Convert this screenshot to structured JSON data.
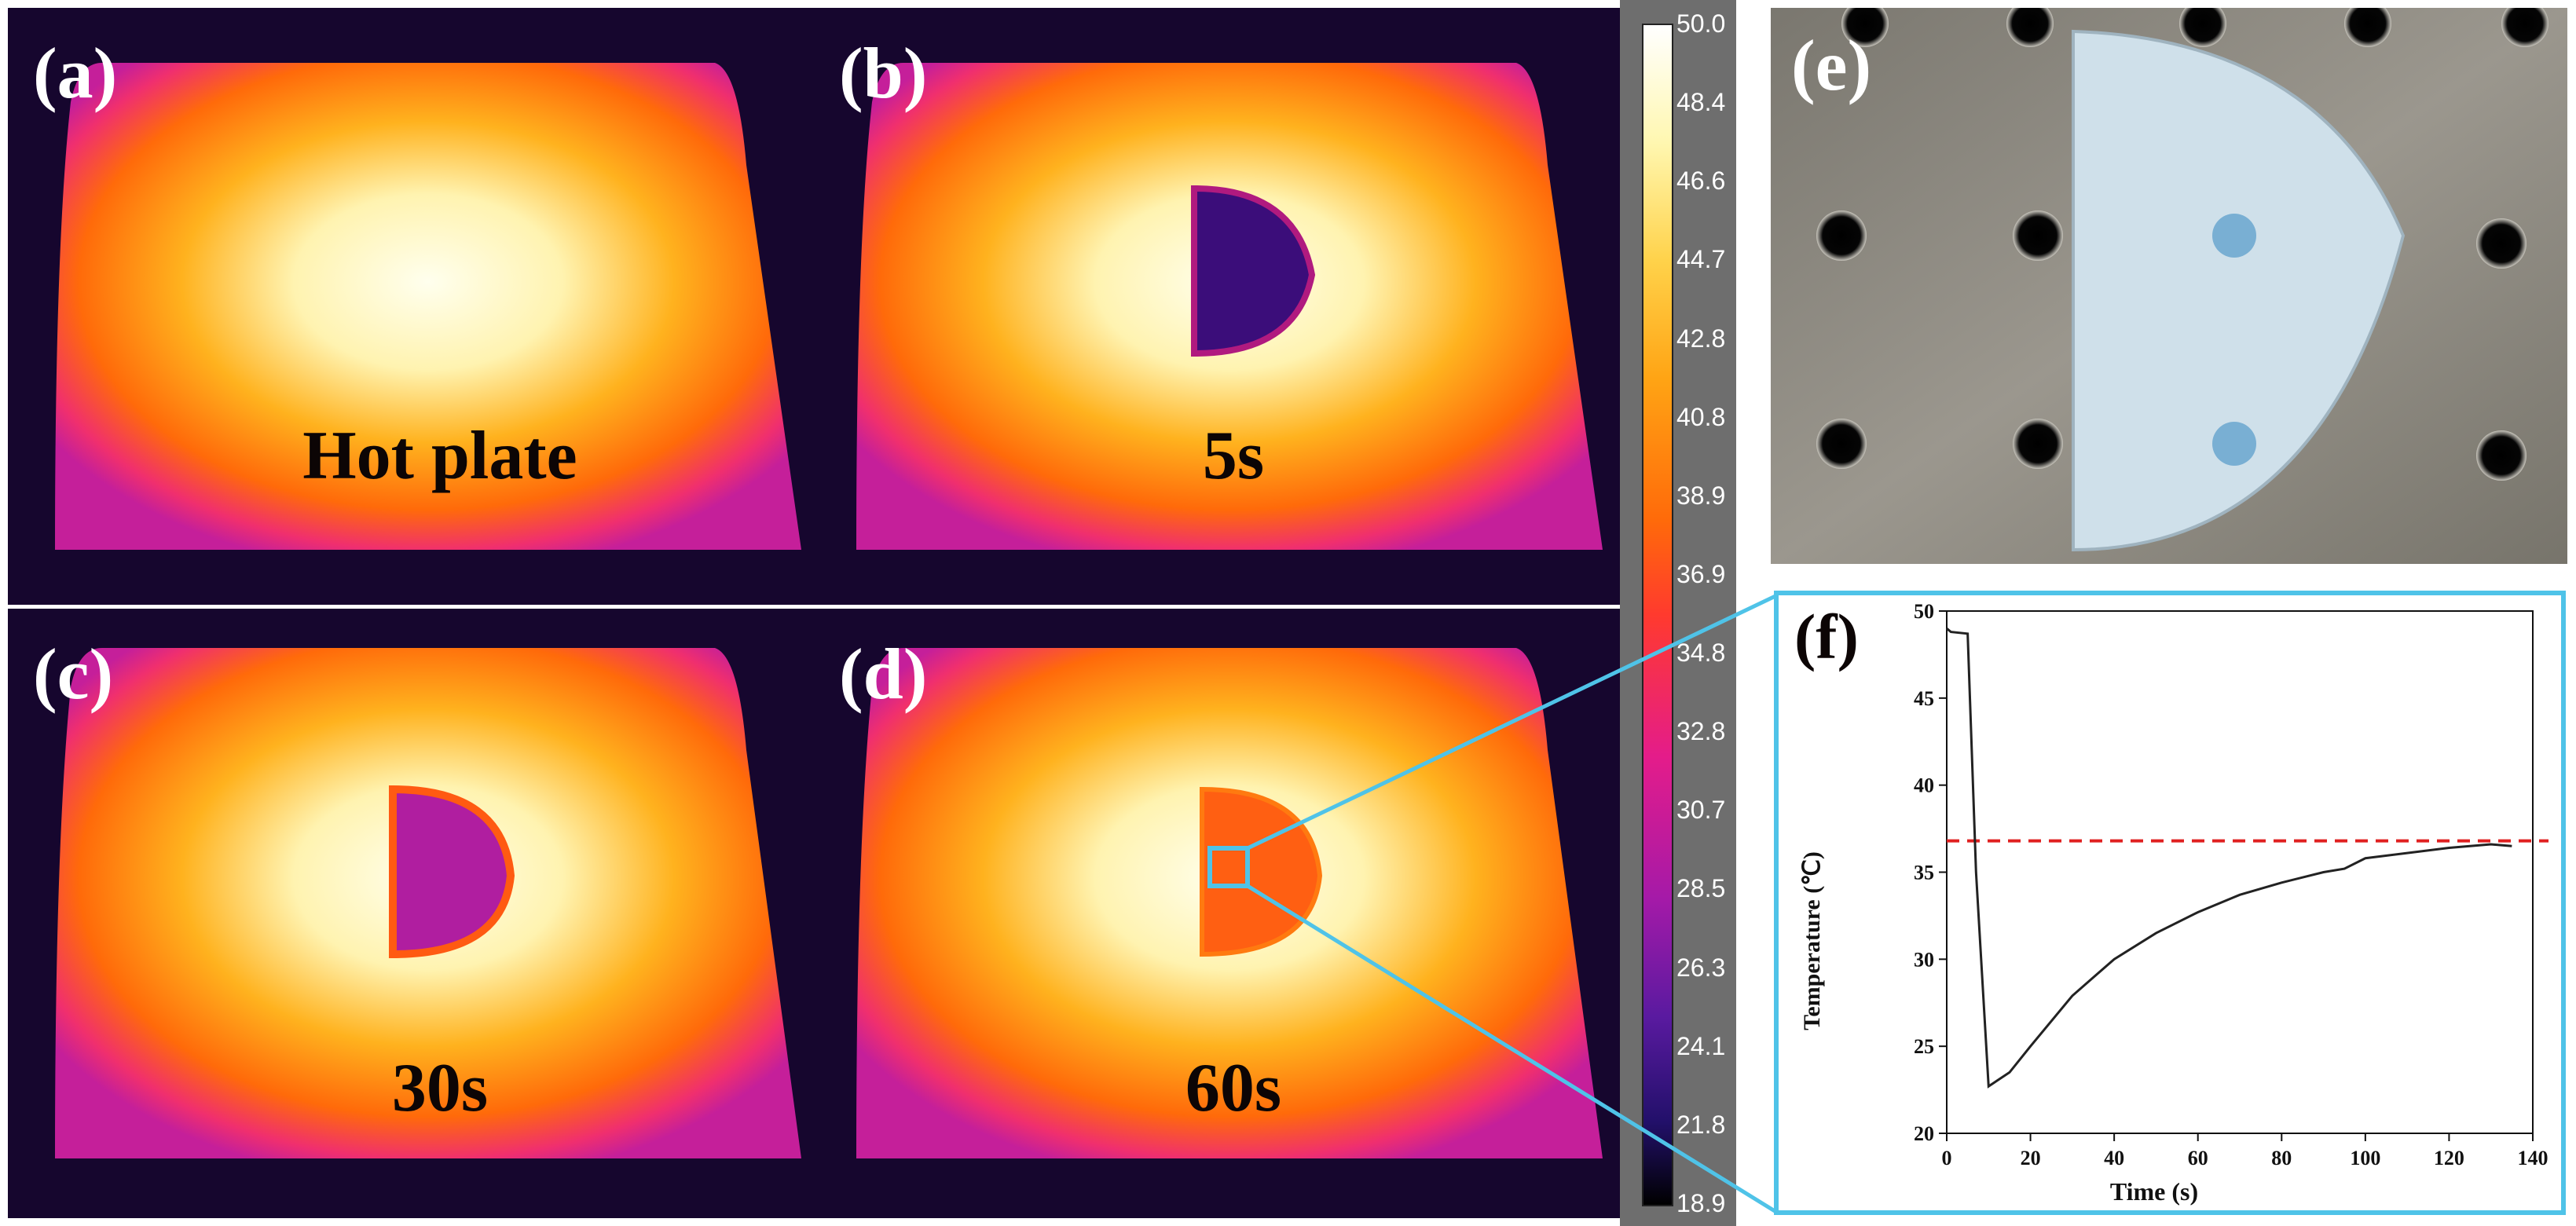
{
  "panels": {
    "a": {
      "label": "(a)",
      "caption": "Hot plate"
    },
    "b": {
      "label": "(b)",
      "caption": "5s"
    },
    "c": {
      "label": "(c)",
      "caption": "30s"
    },
    "d": {
      "label": "(d)",
      "caption": "60s"
    },
    "e": {
      "label": "(e)"
    },
    "f": {
      "label": "(f)"
    }
  },
  "colorbar": {
    "ticks": [
      "50.0",
      "48.4",
      "46.6",
      "44.7",
      "42.8",
      "40.8",
      "38.9",
      "36.9",
      "34.8",
      "32.8",
      "30.7",
      "28.5",
      "26.3",
      "24.1",
      "21.8",
      "18.9"
    ]
  },
  "colors": {
    "zoom_box": "#4fc3e8",
    "threshold_line": "#e02020",
    "curve": "#222222"
  },
  "chart_data": {
    "type": "line",
    "title": "",
    "xlabel": "Time (s)",
    "ylabel": "Temperature (℃)",
    "xlim": [
      0,
      140
    ],
    "ylim": [
      20,
      50
    ],
    "xticks": [
      0,
      20,
      40,
      60,
      80,
      100,
      120,
      140
    ],
    "yticks": [
      20,
      25,
      30,
      35,
      40,
      45,
      50
    ],
    "series": [
      {
        "name": "Temperature",
        "x": [
          0,
          1,
          5,
          7,
          10,
          15,
          20,
          30,
          40,
          50,
          60,
          70,
          80,
          90,
          95,
          100,
          110,
          120,
          130,
          135
        ],
        "y": [
          49.0,
          48.8,
          48.7,
          35.0,
          22.7,
          23.5,
          25.0,
          27.9,
          30.0,
          31.5,
          32.7,
          33.7,
          34.4,
          35.0,
          35.2,
          35.8,
          36.1,
          36.4,
          36.6,
          36.5
        ]
      }
    ],
    "reference_line": {
      "y": 36.8,
      "style": "dashed"
    }
  }
}
